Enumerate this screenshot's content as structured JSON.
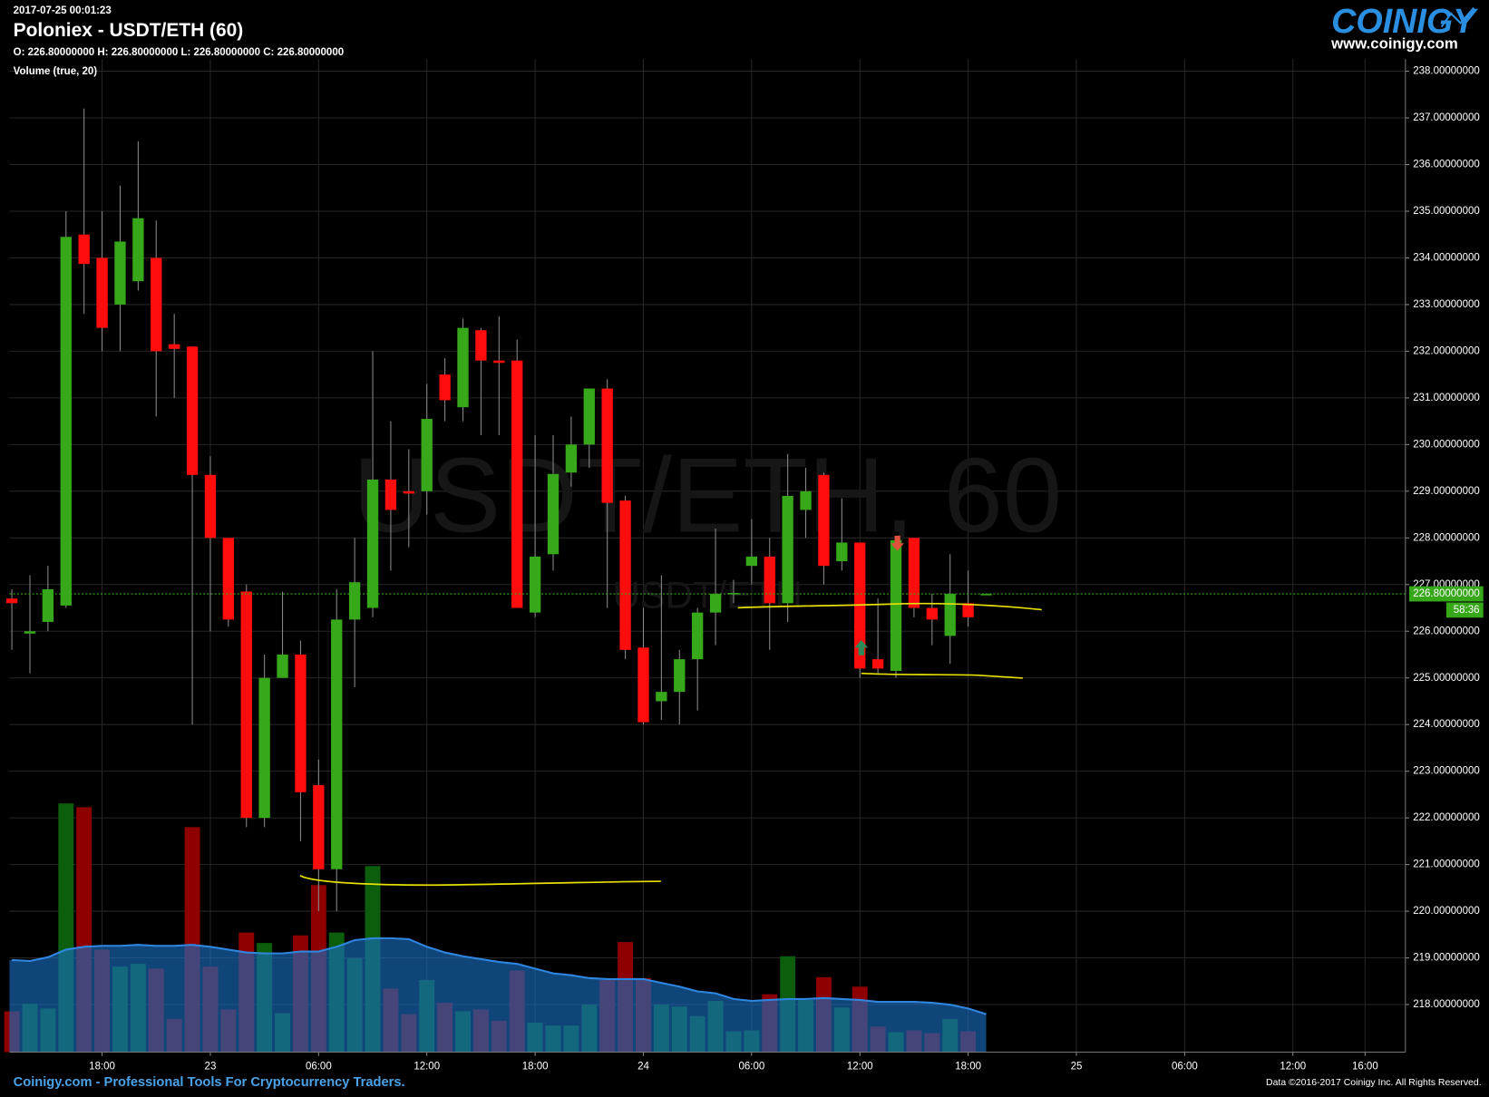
{
  "chart_data": {
    "type": "candlestick",
    "timestamp": "2017-07-25 00:01:23",
    "title": "Poloniex - USDT/ETH (60)",
    "ohlc_text": "O: 226.80000000 H: 226.80000000 L: 226.80000000 C: 226.80000000",
    "watermark": "USDT/ETH, 60",
    "watermark_sub": "USDT/ETH",
    "categories": [
      null,
      null,
      null,
      null,
      null,
      "18:00",
      null,
      null,
      null,
      null,
      null,
      "23",
      null,
      null,
      null,
      null,
      null,
      "06:00",
      null,
      null,
      null,
      null,
      null,
      "12:00",
      null,
      null,
      null,
      null,
      null,
      "18:00",
      null,
      null,
      null,
      null,
      null,
      "24",
      null,
      null,
      null,
      null,
      null,
      "06:00",
      null,
      null,
      null,
      null,
      null,
      "12:00",
      null,
      null,
      null,
      null,
      null,
      "18:00",
      null,
      null,
      null,
      null,
      null,
      "25",
      null,
      null,
      null,
      null,
      null,
      "06:00",
      null,
      null,
      null,
      null,
      null,
      "12:00",
      null,
      null,
      null,
      "16:00",
      null,
      null
    ],
    "open": [
      226.7,
      225.95,
      226.2,
      226.55,
      234.5,
      234.0,
      233.0,
      233.5,
      234.0,
      232.15,
      232.1,
      229.35,
      228.0,
      226.85,
      222.0,
      225.0,
      225.5,
      222.7,
      220.9,
      226.25,
      226.5,
      229.25,
      229.0,
      229.0,
      231.5,
      230.8,
      232.45,
      231.8,
      231.8,
      226.4,
      227.65,
      229.4,
      230.0,
      231.2,
      228.8,
      225.65,
      224.5,
      224.7,
      225.4,
      226.4,
      226.8,
      227.4,
      227.6,
      226.6,
      228.6,
      229.35,
      227.5,
      227.9,
      225.4,
      225.15,
      228.0,
      226.5,
      225.9,
      226.6,
      226.8,
      null,
      null,
      null,
      null,
      null,
      null,
      null,
      null,
      null,
      null,
      null,
      null,
      null,
      null,
      null,
      null,
      null,
      null,
      null,
      null,
      null,
      null,
      null
    ],
    "high": [
      226.9,
      227.2,
      227.4,
      235.0,
      237.2,
      235.0,
      235.55,
      236.5,
      234.8,
      232.8,
      232.1,
      229.75,
      228.0,
      227.0,
      225.5,
      226.85,
      225.8,
      223.25,
      226.9,
      228.0,
      232.0,
      230.5,
      229.9,
      231.3,
      231.85,
      232.7,
      232.5,
      232.75,
      232.25,
      230.2,
      230.2,
      230.6,
      231.2,
      231.4,
      228.9,
      226.5,
      227.2,
      225.6,
      226.5,
      228.2,
      227.1,
      228.4,
      228.0,
      229.8,
      229.5,
      229.4,
      228.85,
      227.9,
      226.7,
      228.0,
      228.0,
      226.8,
      227.65,
      227.3,
      226.8,
      null,
      null,
      null,
      null,
      null,
      null,
      null,
      null,
      null,
      null,
      null,
      null,
      null,
      null,
      null,
      null,
      null,
      null,
      null,
      null,
      null,
      null,
      null
    ],
    "low": [
      225.6,
      225.1,
      226.0,
      226.5,
      232.8,
      232.0,
      232.0,
      233.3,
      230.6,
      231.0,
      224.0,
      226.0,
      226.1,
      221.8,
      221.8,
      225.0,
      221.5,
      220.0,
      220.0,
      224.8,
      226.3,
      227.3,
      227.8,
      228.5,
      230.5,
      230.5,
      230.2,
      230.2,
      226.5,
      226.3,
      227.3,
      229.1,
      229.5,
      226.5,
      225.4,
      224.0,
      224.1,
      224.0,
      224.3,
      225.7,
      226.6,
      227.0,
      225.6,
      226.2,
      228.0,
      227.0,
      227.3,
      225.0,
      225.1,
      225.0,
      226.3,
      225.7,
      225.3,
      226.1,
      226.8,
      null,
      null,
      null,
      null,
      null,
      null,
      null,
      null,
      null,
      null,
      null,
      null,
      null,
      null,
      null,
      null,
      null,
      null,
      null,
      null,
      null,
      null,
      null
    ],
    "close": [
      226.6,
      226.0,
      226.9,
      234.45,
      233.87,
      232.5,
      234.35,
      234.85,
      232.0,
      232.05,
      229.35,
      228.0,
      226.25,
      222.0,
      225.0,
      225.5,
      222.55,
      220.9,
      226.25,
      227.05,
      229.25,
      228.6,
      228.95,
      230.55,
      230.95,
      232.5,
      231.8,
      231.75,
      226.5,
      227.6,
      229.37,
      230.0,
      231.2,
      228.75,
      225.6,
      224.05,
      224.7,
      225.4,
      226.4,
      226.8,
      226.82,
      227.6,
      226.6,
      228.9,
      229.0,
      227.4,
      227.9,
      225.2,
      225.2,
      227.95,
      226.5,
      226.25,
      226.8,
      226.3,
      226.8,
      null,
      null,
      null,
      null,
      null,
      null,
      null,
      null,
      null,
      null,
      null,
      null,
      null,
      null,
      null,
      null,
      null,
      null,
      null,
      null,
      null,
      null,
      null
    ],
    "up_color": "#36a81a",
    "down_color": "#ff0d0d",
    "ylim": [
      216.98,
      238.26
    ],
    "yticks": [
      {
        "value": 218,
        "label": "218.00000000"
      },
      {
        "value": 219,
        "label": "219.00000000"
      },
      {
        "value": 220,
        "label": "220.00000000"
      },
      {
        "value": 221,
        "label": "221.00000000"
      },
      {
        "value": 222,
        "label": "222.00000000"
      },
      {
        "value": 223,
        "label": "223.00000000"
      },
      {
        "value": 224,
        "label": "224.00000000"
      },
      {
        "value": 225,
        "label": "225.00000000"
      },
      {
        "value": 226,
        "label": "226.00000000"
      },
      {
        "value": 227,
        "label": "227.00000000"
      },
      {
        "value": 228,
        "label": "228.00000000"
      },
      {
        "value": 229,
        "label": "229.00000000"
      },
      {
        "value": 230,
        "label": "230.00000000"
      },
      {
        "value": 231,
        "label": "231.00000000"
      },
      {
        "value": 232,
        "label": "232.00000000"
      },
      {
        "value": 233,
        "label": "233.00000000"
      },
      {
        "value": 234,
        "label": "234.00000000"
      },
      {
        "value": 235,
        "label": "235.00000000"
      },
      {
        "value": 236,
        "label": "236.00000000"
      },
      {
        "value": 237,
        "label": "237.00000000"
      },
      {
        "value": 238,
        "label": "238.00000000"
      }
    ],
    "grid": true,
    "last_price": {
      "value": 226.8,
      "label": "226.80000000"
    },
    "countdown": "58:36",
    "volume": {
      "label": "Volume (true, 20)",
      "vlim": [
        0,
        30
      ],
      "up_color": "#0c5e0c",
      "down_color": "#8e0000",
      "ma_color": "#1a6fc4",
      "values": [
        4.3,
        5.1,
        4.6,
        26.2,
        25.8,
        10.8,
        9.0,
        9.3,
        8.8,
        3.5,
        23.7,
        9.0,
        4.5,
        12.6,
        11.5,
        4.1,
        12.3,
        17.6,
        12.6,
        9.9,
        19.6,
        6.7,
        4.0,
        7.6,
        5.2,
        4.3,
        4.5,
        3.3,
        8.6,
        3.1,
        2.8,
        2.8,
        5.0,
        7.6,
        11.6,
        7.8,
        5.0,
        4.8,
        3.8,
        5.4,
        2.2,
        2.3,
        6.1,
        10.1,
        5.5,
        7.9,
        4.7,
        6.9,
        2.7,
        2.1,
        2.3,
        2.0,
        3.5,
        2.2,
        null,
        null,
        null,
        null,
        null,
        null,
        null,
        null,
        null,
        null,
        null,
        null,
        null,
        null,
        null,
        null,
        null,
        null,
        null,
        null,
        null,
        null,
        null,
        null
      ],
      "ma": [
        9.7,
        9.6,
        10.0,
        10.8,
        11.1,
        11.2,
        11.2,
        11.3,
        11.2,
        11.2,
        11.3,
        11.1,
        10.8,
        10.5,
        10.4,
        10.4,
        10.6,
        10.6,
        11.1,
        11.8,
        12.0,
        12.0,
        11.9,
        11.1,
        10.5,
        10.1,
        9.8,
        9.5,
        9.3,
        8.8,
        8.3,
        8.1,
        7.8,
        7.7,
        7.7,
        7.7,
        7.3,
        6.9,
        6.4,
        6.2,
        5.6,
        5.4,
        5.5,
        5.6,
        5.6,
        5.7,
        5.6,
        5.5,
        5.3,
        5.3,
        5.3,
        5.2,
        5.0,
        4.6,
        4.0,
        null,
        null,
        null,
        null,
        null,
        null,
        null,
        null,
        null,
        null,
        null,
        null,
        null,
        null,
        null,
        null,
        null,
        null,
        null,
        null,
        null,
        null,
        null
      ]
    }
  },
  "branding": {
    "logo": "COINIGY",
    "url": "www.coinigy.com",
    "footer": "Coinigy.com - Professional Tools For Cryptocurrency Traders.",
    "copyright": "Data ©2016-2017 Coinigy Inc. All Rights Reserved."
  }
}
